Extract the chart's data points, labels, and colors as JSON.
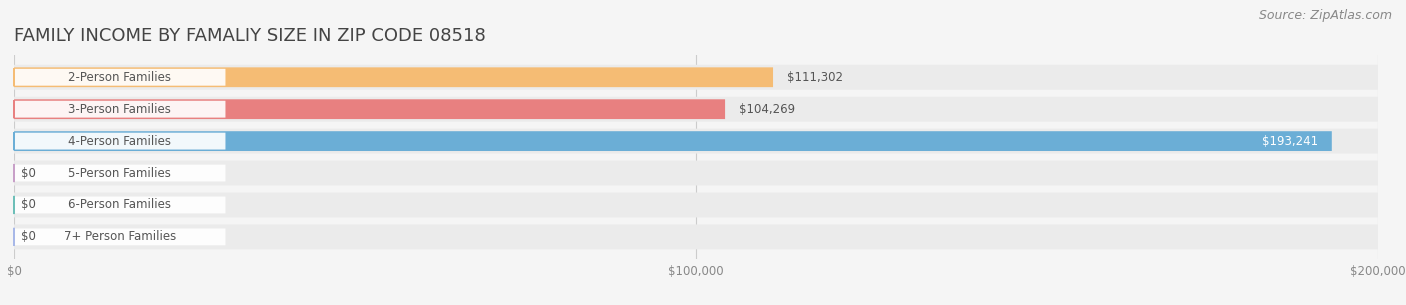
{
  "title": "FAMILY INCOME BY FAMALIY SIZE IN ZIP CODE 08518",
  "source": "Source: ZipAtlas.com",
  "categories": [
    "2-Person Families",
    "3-Person Families",
    "4-Person Families",
    "5-Person Families",
    "6-Person Families",
    "7+ Person Families"
  ],
  "values": [
    111302,
    104269,
    193241,
    0,
    0,
    0
  ],
  "bar_colors": [
    "#f5bc74",
    "#e88080",
    "#6baed6",
    "#c8a0c8",
    "#6dbfb8",
    "#a8b8e8"
  ],
  "label_colors": [
    "#888888",
    "#888888",
    "#888888",
    "#888888",
    "#888888",
    "#888888"
  ],
  "value_labels": [
    "$111,302",
    "$104,269",
    "$193,241",
    "$0",
    "$0",
    "$0"
  ],
  "xlim": [
    0,
    200000
  ],
  "xticks": [
    0,
    100000,
    200000
  ],
  "xtick_labels": [
    "$0",
    "$100,000",
    "$200,000"
  ],
  "background_color": "#f5f5f5",
  "bar_background_color": "#ebebeb",
  "title_fontsize": 13,
  "label_fontsize": 8.5,
  "value_fontsize": 8.5,
  "source_fontsize": 9
}
